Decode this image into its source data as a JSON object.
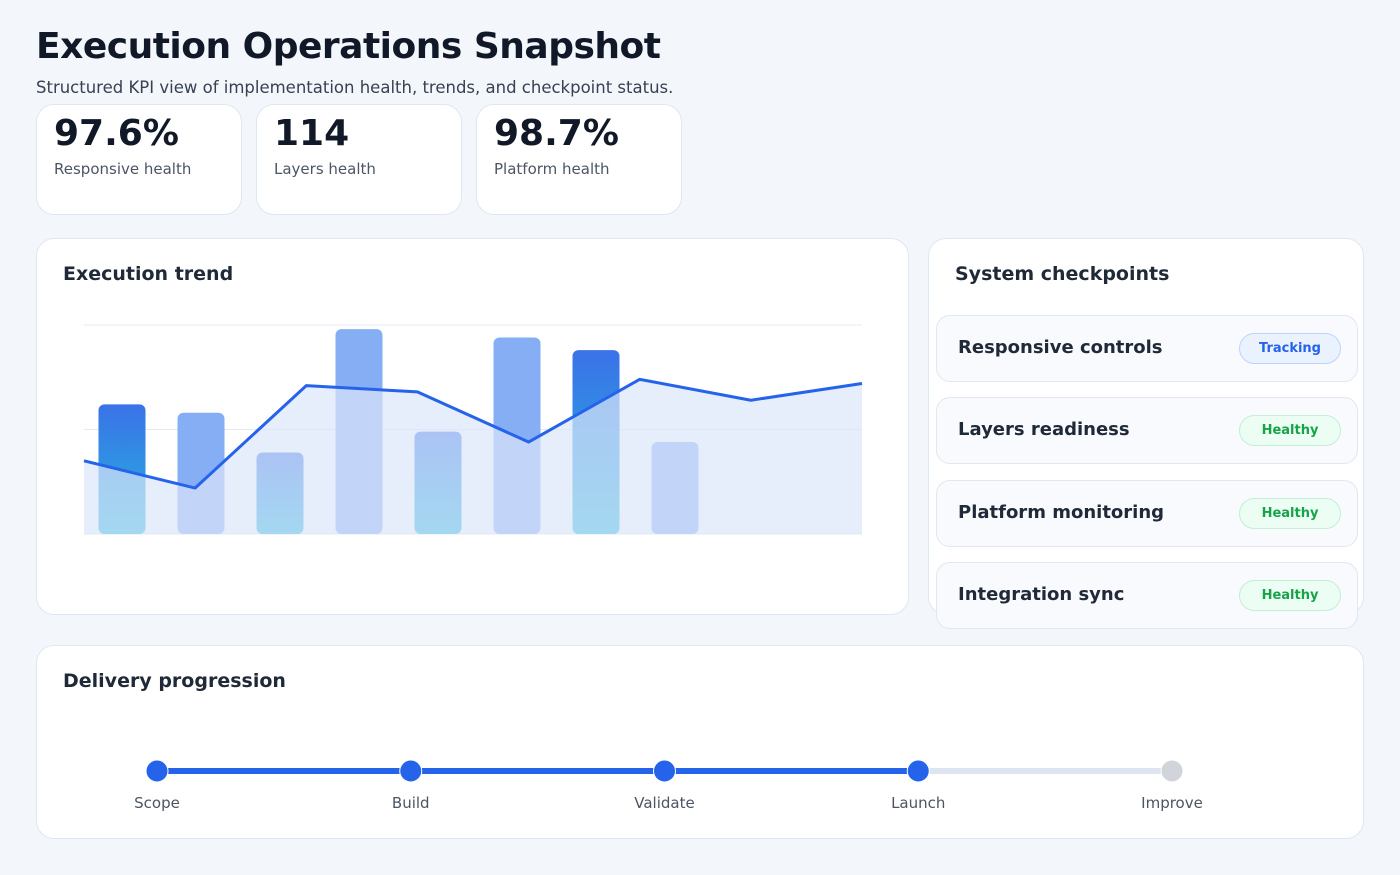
{
  "header": {
    "title": "Execution Operations Snapshot",
    "subtitle": "Structured KPI view of implementation health, trends, and checkpoint status."
  },
  "kpis": [
    {
      "value": "97.6%",
      "label": "Responsive health"
    },
    {
      "value": "114",
      "label": "Layers health"
    },
    {
      "value": "98.7%",
      "label": "Platform health"
    }
  ],
  "trend": {
    "title": "Execution trend",
    "chart_data": {
      "type": "bar",
      "ylim": [
        0,
        100
      ],
      "yticks": [
        0,
        50,
        100
      ],
      "grid": true,
      "series": [
        {
          "type": "bar",
          "colors": [
            "#2f6fe6",
            "#86aef5"
          ],
          "values": [
            62,
            58,
            39,
            98,
            49,
            94,
            88,
            44
          ]
        },
        {
          "type": "line",
          "color": "#2563eb",
          "area_color": "#dbe6fa",
          "values": [
            35,
            22,
            71,
            68,
            44,
            74,
            64,
            72
          ]
        }
      ]
    }
  },
  "checkpoints": {
    "title": "System checkpoints",
    "items": [
      {
        "name": "Responsive controls",
        "status": "Tracking"
      },
      {
        "name": "Layers readiness",
        "status": "Healthy"
      },
      {
        "name": "Platform monitoring",
        "status": "Healthy"
      },
      {
        "name": "Integration sync",
        "status": "Healthy"
      }
    ]
  },
  "progression": {
    "title": "Delivery progression",
    "steps": [
      {
        "label": "Scope",
        "done": true
      },
      {
        "label": "Build",
        "done": true
      },
      {
        "label": "Validate",
        "done": true
      },
      {
        "label": "Launch",
        "done": true
      },
      {
        "label": "Improve",
        "done": false
      }
    ]
  }
}
